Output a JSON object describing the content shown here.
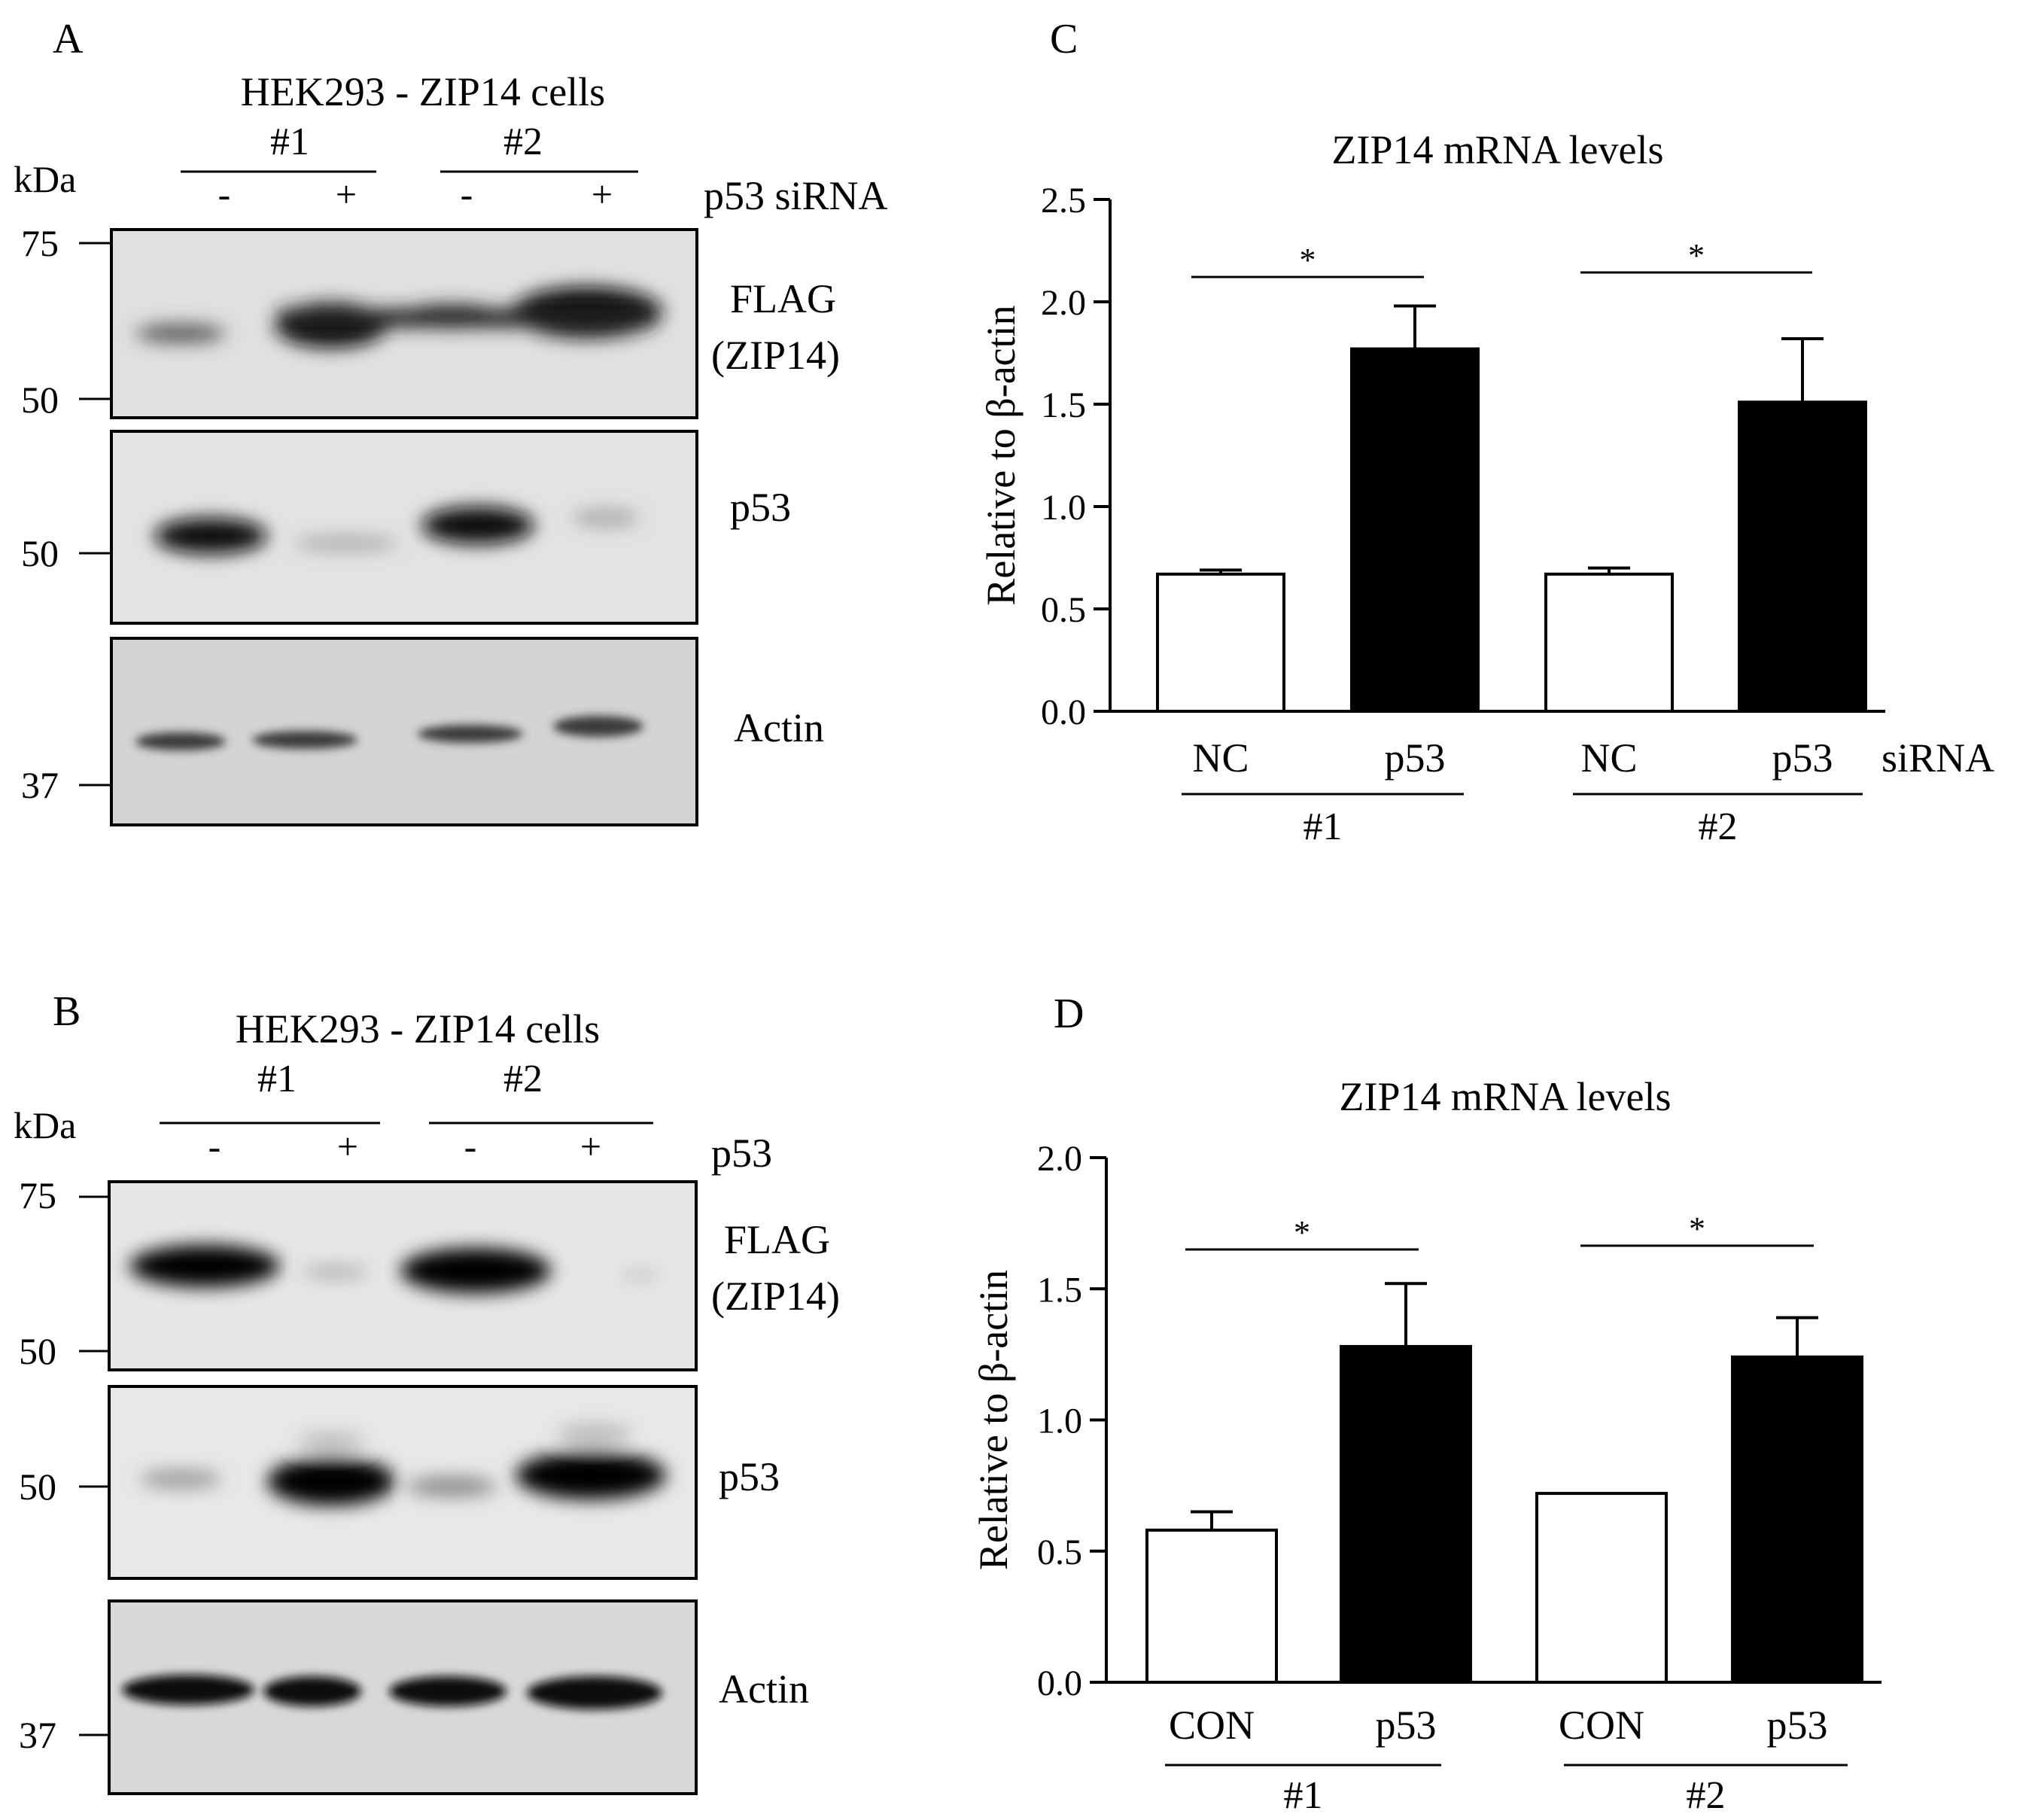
{
  "panels": {
    "A": {
      "letter": "A",
      "cell_label": "HEK293 - ZIP14 cells",
      "groups": [
        "#1",
        "#2"
      ],
      "kda_label": "kDa",
      "treatment": "p53 siRNA",
      "lane_signs": [
        "-",
        "+",
        "-",
        "+"
      ],
      "blots": [
        {
          "label": "FLAG\n(ZIP14)",
          "markers": [
            "75",
            "50"
          ]
        },
        {
          "label": "p53",
          "markers": [
            "50"
          ]
        },
        {
          "label": "Actin",
          "markers": [
            "37"
          ]
        }
      ]
    },
    "B": {
      "letter": "B",
      "cell_label": "HEK293 - ZIP14 cells",
      "groups": [
        "#1",
        "#2"
      ],
      "kda_label": "kDa",
      "treatment": "p53",
      "lane_signs": [
        "-",
        "+",
        "-",
        "+"
      ],
      "blots": [
        {
          "label": "FLAG\n(ZIP14)",
          "markers": [
            "75",
            "50"
          ]
        },
        {
          "label": "p53",
          "markers": [
            "50"
          ]
        },
        {
          "label": "Actin",
          "markers": [
            "37"
          ]
        }
      ]
    }
  },
  "chart_data": [
    {
      "panel": "C",
      "type": "bar",
      "title": "ZIP14 mRNA levels",
      "ylabel": "Relative to β-actin",
      "xlabel": "siRNA",
      "ylim": [
        0,
        2.5
      ],
      "yticks": [
        "0.0",
        "0.5",
        "1.0",
        "1.5",
        "2.0",
        "2.5"
      ],
      "categories": [
        "NC",
        "p53",
        "NC",
        "p53"
      ],
      "groups": [
        "#1",
        "#2"
      ],
      "values": [
        0.67,
        1.77,
        0.67,
        1.51
      ],
      "errors": [
        0.02,
        0.21,
        0.03,
        0.31
      ],
      "bar_colors": [
        "#ffffff",
        "#000000",
        "#ffffff",
        "#000000"
      ],
      "significance": [
        {
          "from": 0,
          "to": 1,
          "label": "*"
        },
        {
          "from": 2,
          "to": 3,
          "label": "*"
        }
      ]
    },
    {
      "panel": "D",
      "type": "bar",
      "title": "ZIP14 mRNA levels",
      "ylabel": "Relative to β-actin",
      "xlabel": "",
      "ylim": [
        0,
        2.0
      ],
      "yticks": [
        "0.0",
        "0.5",
        "1.0",
        "1.5",
        "2.0"
      ],
      "categories": [
        "CON",
        "p53",
        "CON",
        "p53"
      ],
      "groups": [
        "#1",
        "#2"
      ],
      "values": [
        0.58,
        1.28,
        0.72,
        1.24
      ],
      "errors": [
        0.07,
        0.24,
        0,
        0.15
      ],
      "bar_colors": [
        "#ffffff",
        "#000000",
        "#ffffff",
        "#000000"
      ],
      "significance": [
        {
          "from": 0,
          "to": 1,
          "label": "*"
        },
        {
          "from": 2,
          "to": 3,
          "label": "*"
        }
      ]
    }
  ]
}
